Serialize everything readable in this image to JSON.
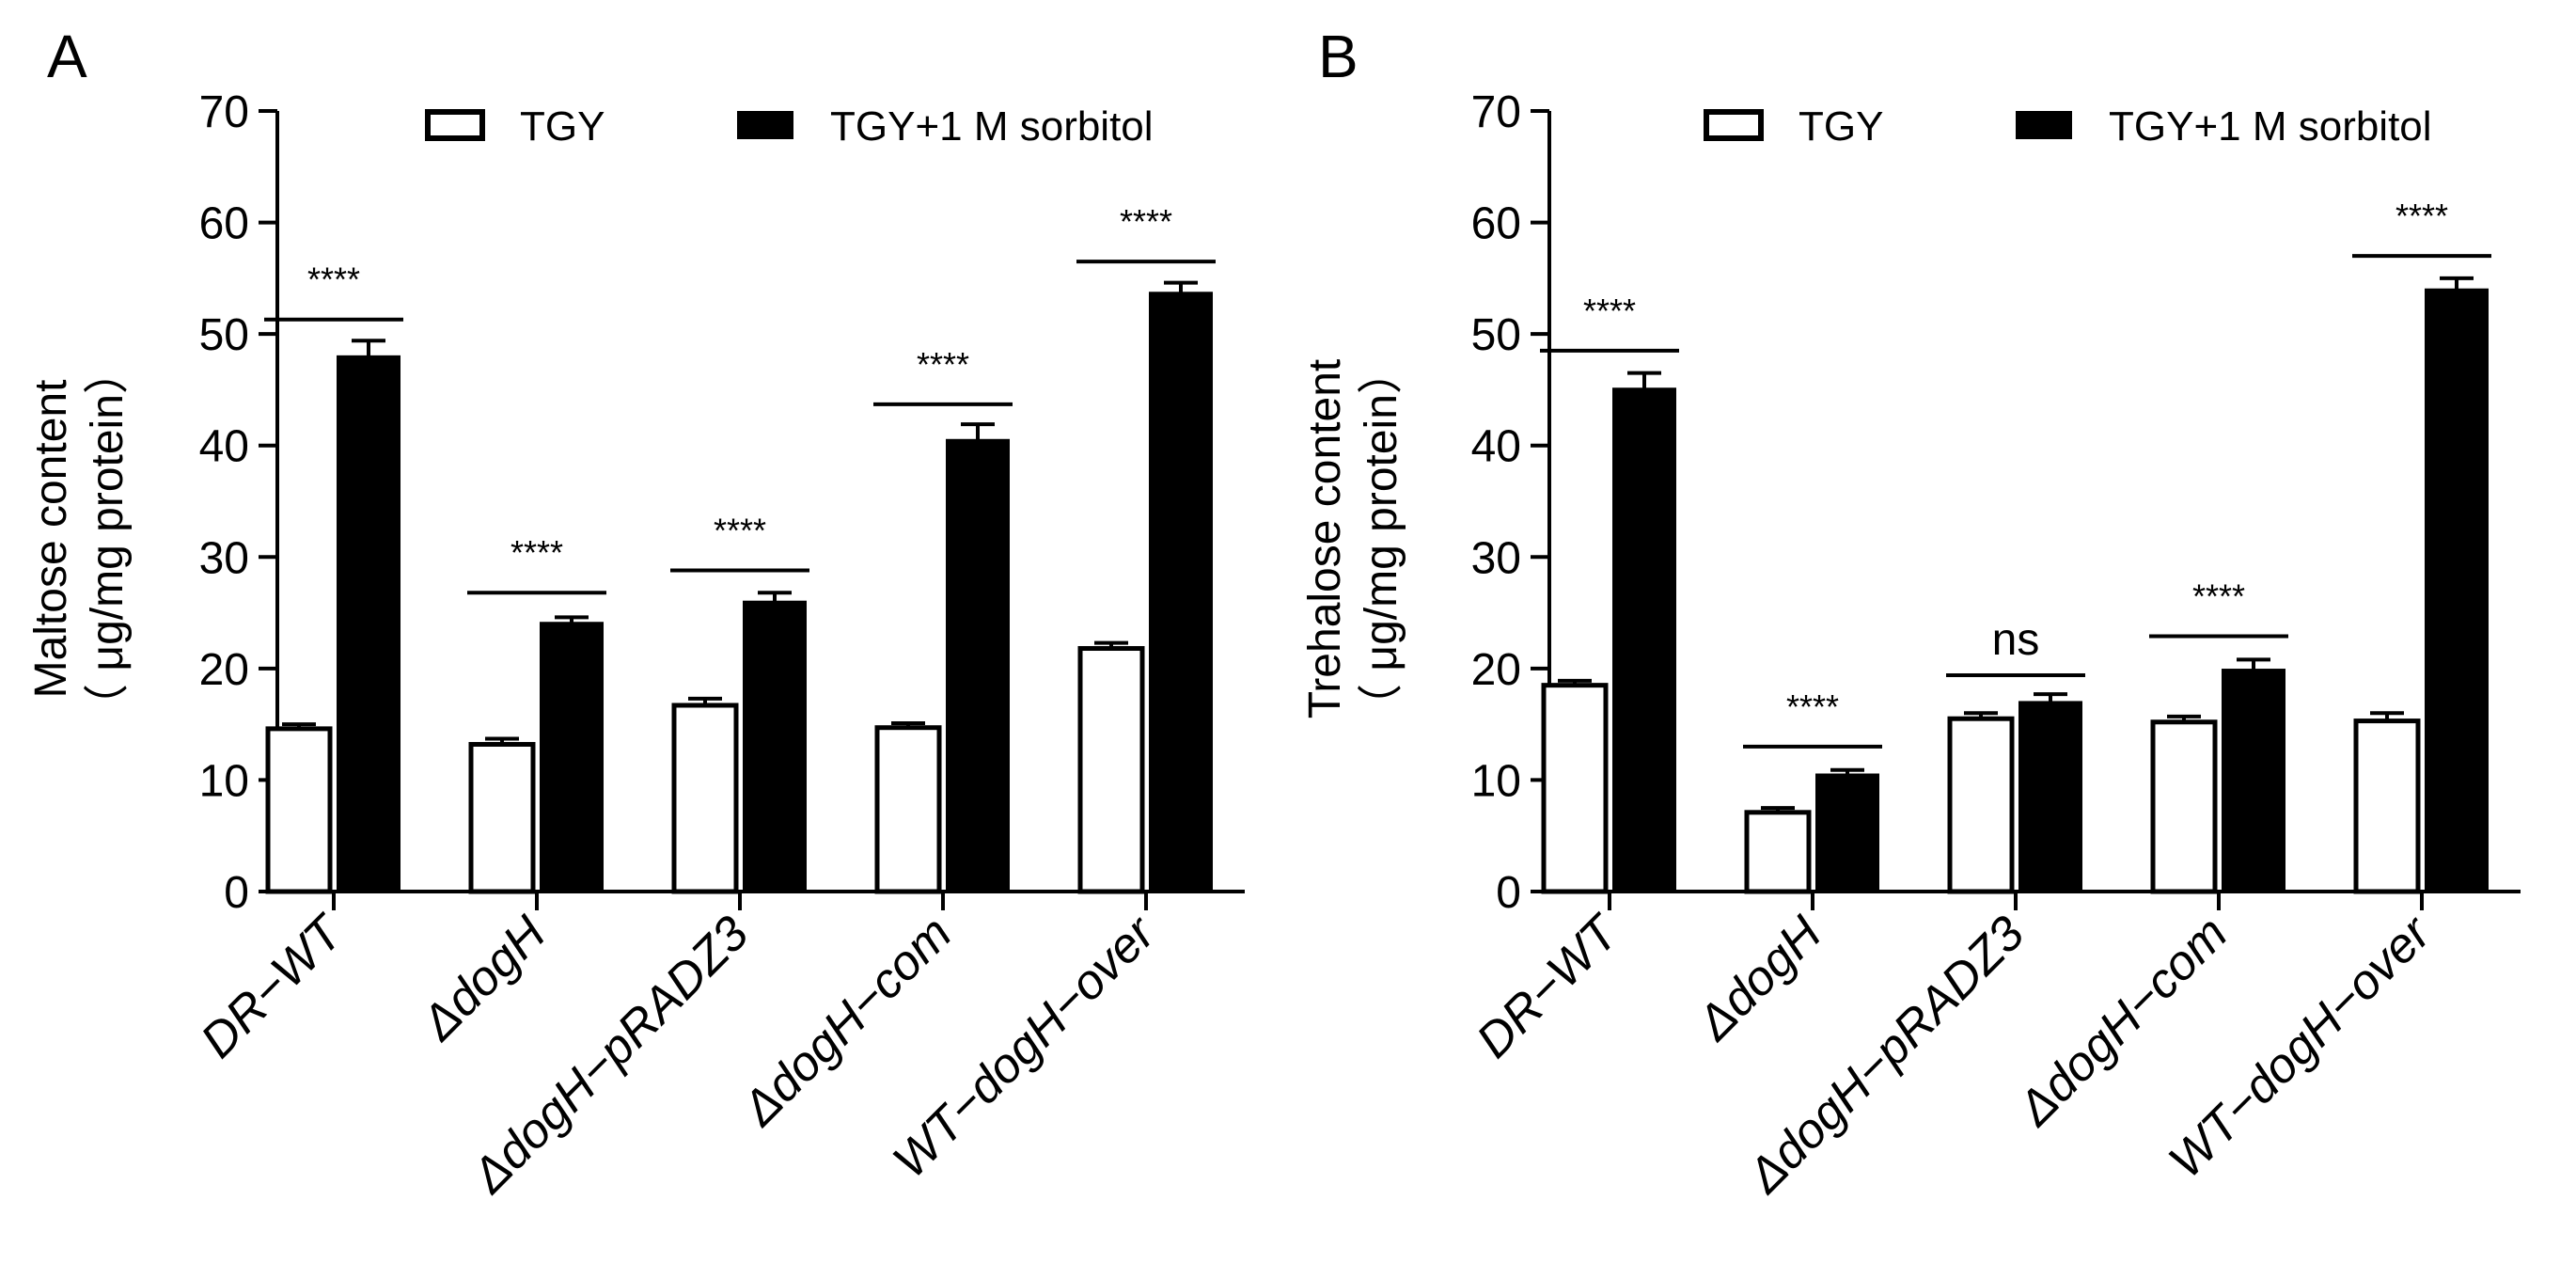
{
  "chart_data": [
    {
      "panel": "A",
      "type": "bar",
      "categories": [
        "DR−WT",
        "ΔdogH",
        "ΔdogH−pRADZ3",
        "ΔdogH−com",
        "WT−dogH−over"
      ],
      "series": [
        {
          "name": "TGY",
          "values": [
            14.6,
            13.2,
            16.7,
            14.7,
            21.8
          ],
          "errors": [
            0.4,
            0.5,
            0.6,
            0.4,
            0.5
          ],
          "fill": "#ffffff"
        },
        {
          "name": "TGY+1 M sorbitol",
          "values": [
            48.0,
            24.1,
            26.0,
            40.5,
            53.7
          ],
          "errors": [
            1.4,
            0.5,
            0.8,
            1.4,
            0.9
          ],
          "fill": "#000000"
        }
      ],
      "significance": [
        "****",
        "****",
        "****",
        "****",
        "****"
      ],
      "bracket_values": [
        51.3,
        26.8,
        28.8,
        43.7,
        56.5
      ],
      "ylabel_line1": "Maltose content",
      "ylabel_line2": "（ μg/mg protein）",
      "yticks": [
        0,
        10,
        20,
        30,
        40,
        50,
        60,
        70
      ],
      "ylim": [
        0,
        70
      ]
    },
    {
      "panel": "B",
      "type": "bar",
      "categories": [
        "DR−WT",
        "ΔdogH",
        "ΔdogH−pRADZ3",
        "ΔdogH−com",
        "WT−dogH−over"
      ],
      "series": [
        {
          "name": "TGY",
          "values": [
            18.5,
            7.1,
            15.5,
            15.2,
            15.3
          ],
          "errors": [
            0.4,
            0.4,
            0.5,
            0.5,
            0.7
          ],
          "fill": "#ffffff"
        },
        {
          "name": "TGY+1 M sorbitol",
          "values": [
            45.1,
            10.5,
            17.0,
            19.9,
            54.0
          ],
          "errors": [
            1.4,
            0.4,
            0.7,
            0.9,
            1.0
          ],
          "fill": "#000000"
        }
      ],
      "significance": [
        "****",
        "****",
        "ns",
        "****",
        "****"
      ],
      "bracket_values": [
        48.5,
        13.0,
        19.4,
        22.9,
        57.0
      ],
      "ylabel_line1": "Trehalose content",
      "ylabel_line2": "（ μg/mg protein）",
      "yticks": [
        0,
        10,
        20,
        30,
        40,
        50,
        60,
        70
      ],
      "ylim": [
        0,
        70
      ]
    }
  ],
  "colors": {
    "axis": "#000000",
    "tgy_fill": "#ffffff",
    "sorbitol_fill": "#000000"
  }
}
